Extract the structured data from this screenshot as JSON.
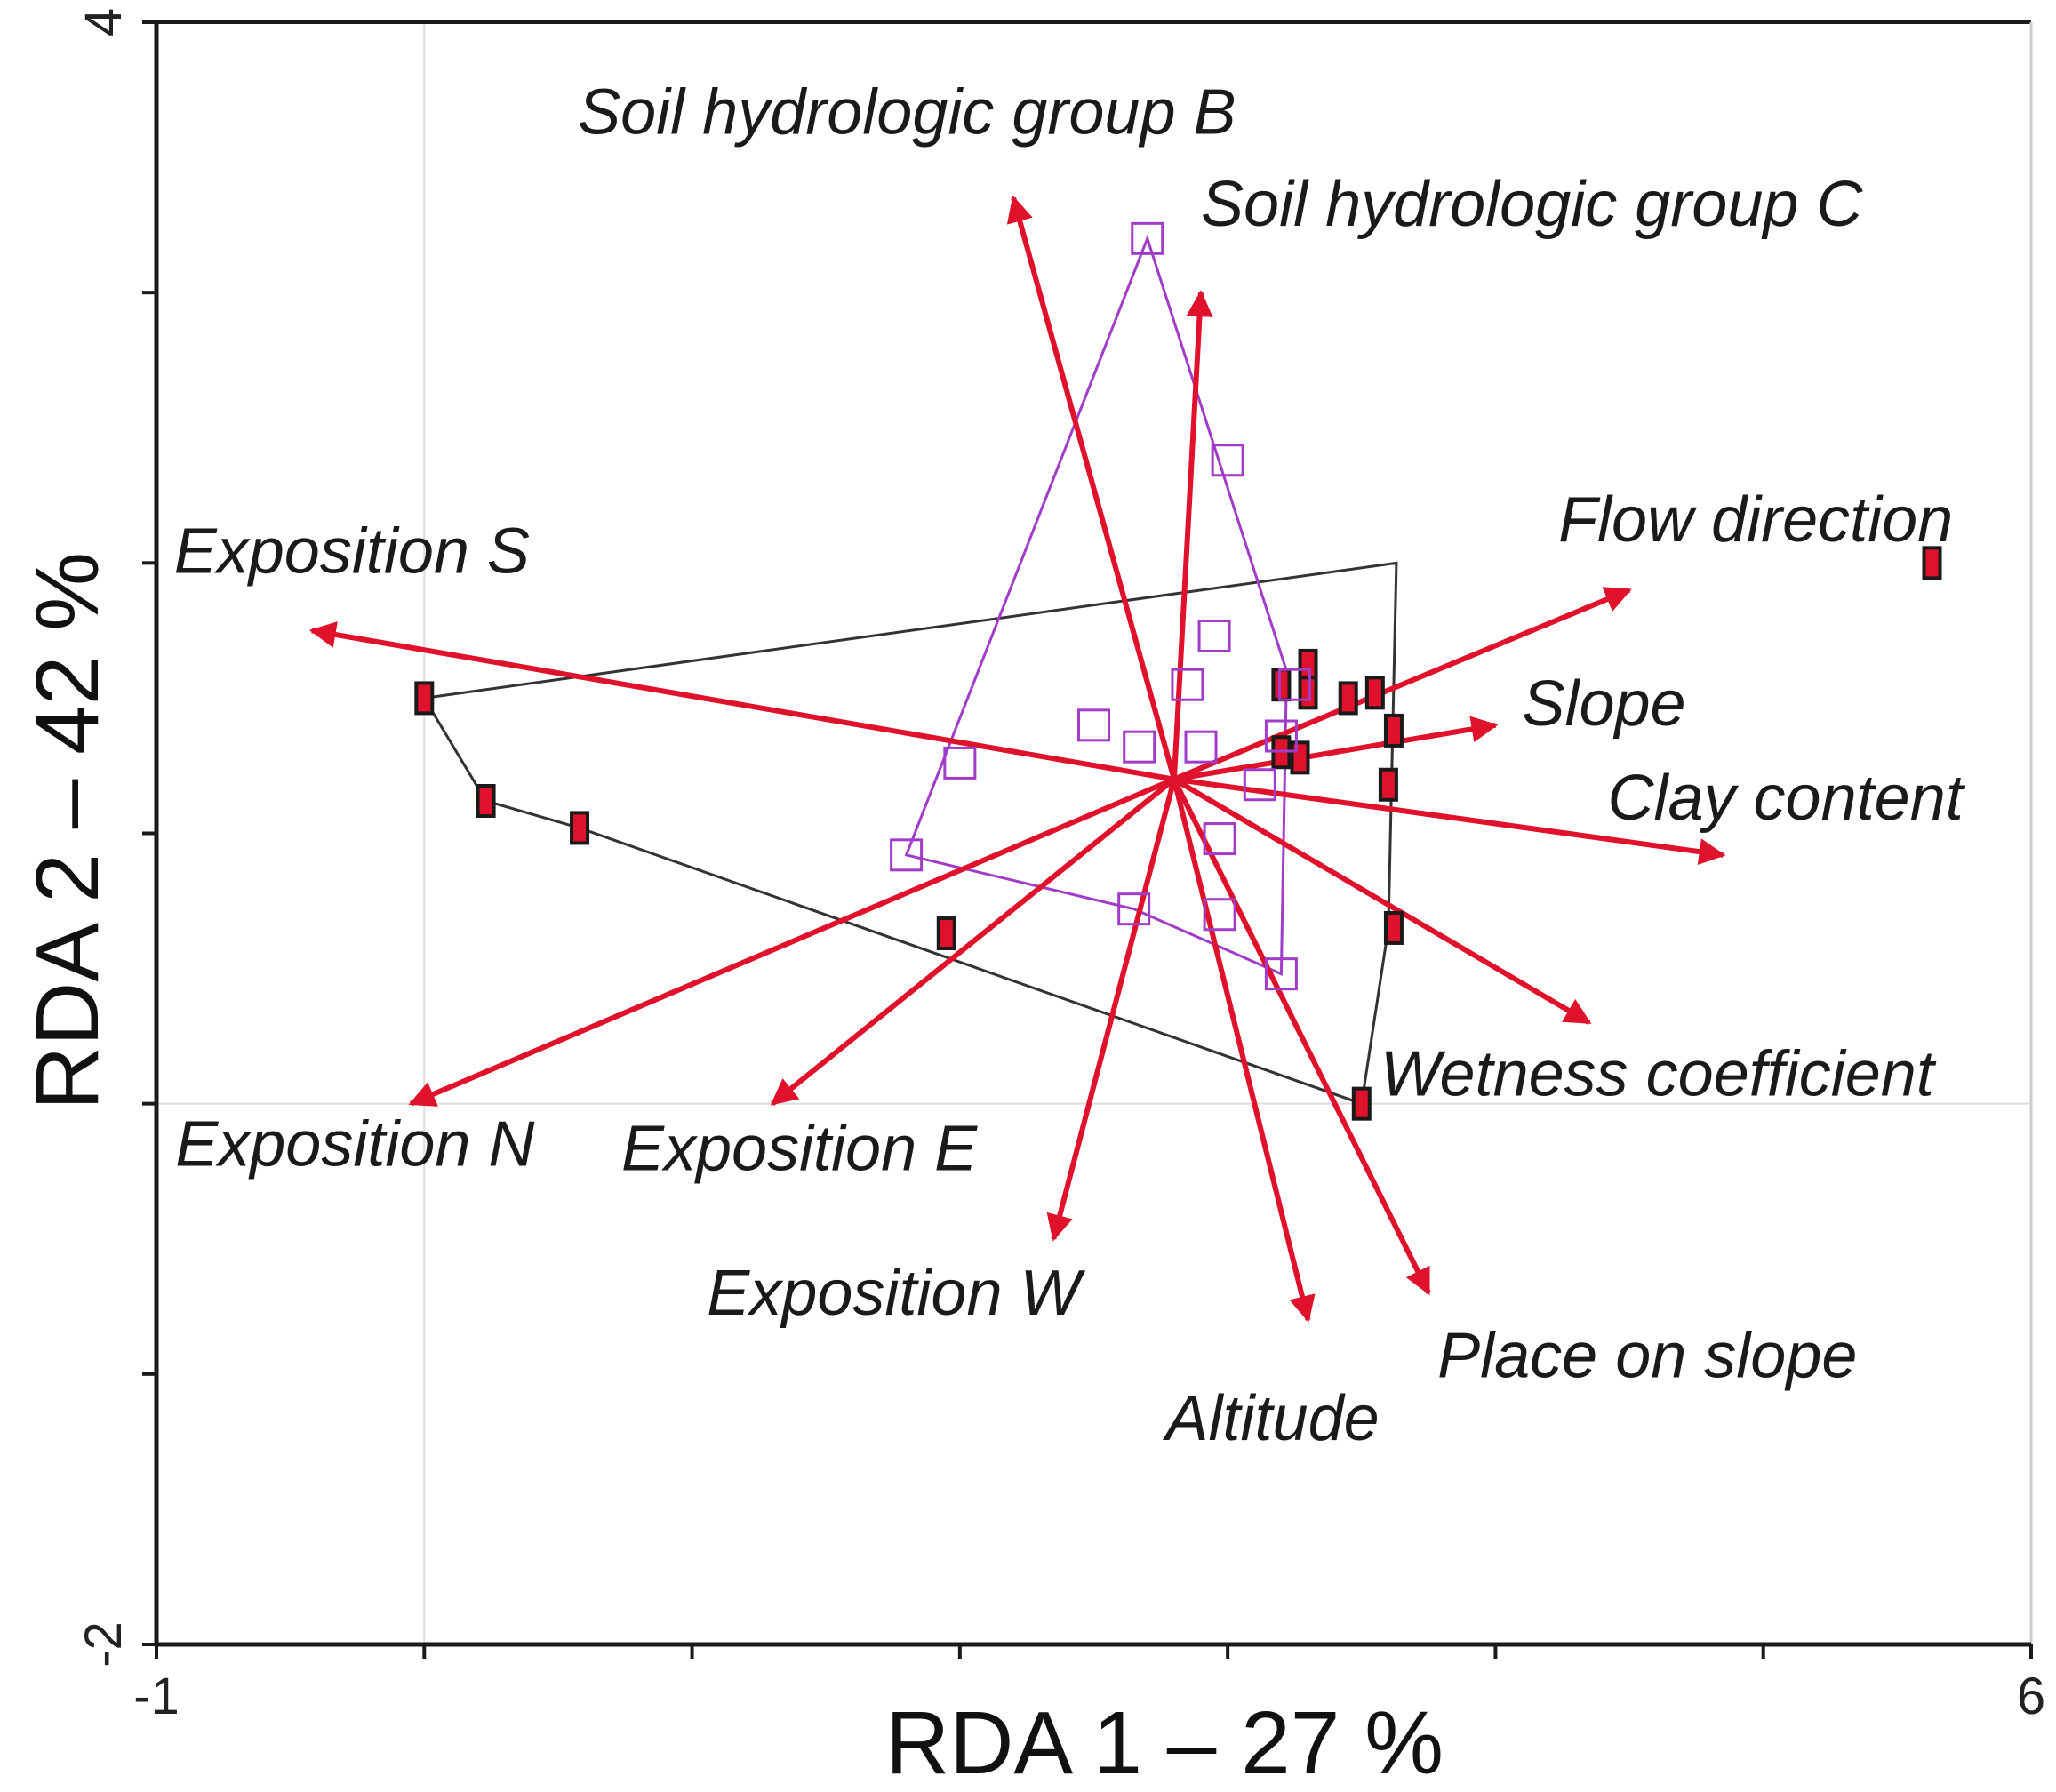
{
  "chart_data": {
    "type": "scatter",
    "subtype": "rda-biplot",
    "title": "",
    "xlabel": "RDA 1 – 27 %",
    "ylabel": "RDA 2 – 42 %",
    "xlim": [
      -1,
      6
    ],
    "ylim": [
      -2,
      4
    ],
    "x_ticks": [
      -1,
      0,
      1,
      2,
      3,
      4,
      5,
      6
    ],
    "y_ticks": [
      -2,
      -1,
      0,
      1,
      2,
      3,
      4
    ],
    "x_tick_labels": [
      {
        "value": -1,
        "text": "-1"
      },
      {
        "value": 6,
        "text": "6"
      }
    ],
    "y_tick_labels": [
      {
        "value": -2,
        "text": "-2"
      },
      {
        "value": 4,
        "text": "4"
      }
    ],
    "grid_lines": {
      "x": [
        0
      ],
      "y": [
        0
      ]
    },
    "colors": {
      "arrow": "#e0112b",
      "group_a_points": "#e0112b",
      "group_a_outline": "#1a1a1a",
      "group_a_hull": "#333333",
      "group_b_points": "#a03cc8",
      "group_b_hull": "#a03cc8",
      "axis": "#1a1a1a",
      "grid": "#dddddd"
    },
    "arrow_origin": [
      2.8,
      1.2
    ],
    "arrows": [
      {
        "label": "Soil hydrologic group B",
        "x": 2.2,
        "y": 3.35
      },
      {
        "label": "Soil hydrologic group C",
        "x": 2.9,
        "y": 3.0
      },
      {
        "label": "Exposition S",
        "x": -0.42,
        "y": 1.75
      },
      {
        "label": "Flow direction",
        "x": 4.5,
        "y": 1.9
      },
      {
        "label": "Slope",
        "x": 4.0,
        "y": 1.4
      },
      {
        "label": "Clay content",
        "x": 4.85,
        "y": 0.92
      },
      {
        "label": "Wetness coefficient",
        "x": 4.35,
        "y": 0.3
      },
      {
        "label": "Exposition N",
        "x": -0.05,
        "y": 0.0
      },
      {
        "label": "Exposition E",
        "x": 1.3,
        "y": 0.0
      },
      {
        "label": "Exposition W",
        "x": 2.35,
        "y": -0.5
      },
      {
        "label": "Altitude",
        "x": 3.3,
        "y": -0.8
      },
      {
        "label": "Place on slope",
        "x": 3.75,
        "y": -0.7
      }
    ],
    "series": [
      {
        "marker": "filled-square",
        "points": [
          [
            0.0,
            1.5
          ],
          [
            0.23,
            1.12
          ],
          [
            0.58,
            1.02
          ],
          [
            1.95,
            0.63
          ],
          [
            5.63,
            2.0
          ],
          [
            3.2,
            1.55
          ],
          [
            3.3,
            1.62
          ],
          [
            3.3,
            1.52
          ],
          [
            3.55,
            1.52
          ],
          [
            3.62,
            1.38
          ],
          [
            3.6,
            1.18
          ],
          [
            3.62,
            0.65
          ],
          [
            3.45,
            1.5
          ],
          [
            3.2,
            1.3
          ],
          [
            3.27,
            1.28
          ],
          [
            3.5,
            0.0
          ]
        ],
        "hull": [
          [
            0.0,
            1.5
          ],
          [
            3.63,
            2.0
          ],
          [
            3.6,
            0.65
          ],
          [
            3.5,
            0.0
          ],
          [
            0.58,
            1.02
          ],
          [
            0.23,
            1.12
          ]
        ]
      },
      {
        "marker": "open-square",
        "points": [
          [
            2.7,
            3.2
          ],
          [
            3.0,
            2.38
          ],
          [
            2.95,
            1.73
          ],
          [
            2.85,
            1.55
          ],
          [
            2.5,
            1.4
          ],
          [
            2.67,
            1.32
          ],
          [
            2.9,
            1.32
          ],
          [
            2.0,
            1.26
          ],
          [
            3.12,
            1.18
          ],
          [
            2.97,
            0.98
          ],
          [
            3.25,
            1.55
          ],
          [
            3.2,
            1.36
          ],
          [
            1.8,
            0.92
          ],
          [
            2.65,
            0.72
          ],
          [
            2.97,
            0.7
          ],
          [
            3.2,
            0.48
          ]
        ],
        "hull": [
          [
            2.7,
            3.2
          ],
          [
            3.22,
            1.6
          ],
          [
            3.2,
            0.48
          ],
          [
            2.65,
            0.72
          ],
          [
            1.8,
            0.92
          ]
        ]
      }
    ]
  }
}
